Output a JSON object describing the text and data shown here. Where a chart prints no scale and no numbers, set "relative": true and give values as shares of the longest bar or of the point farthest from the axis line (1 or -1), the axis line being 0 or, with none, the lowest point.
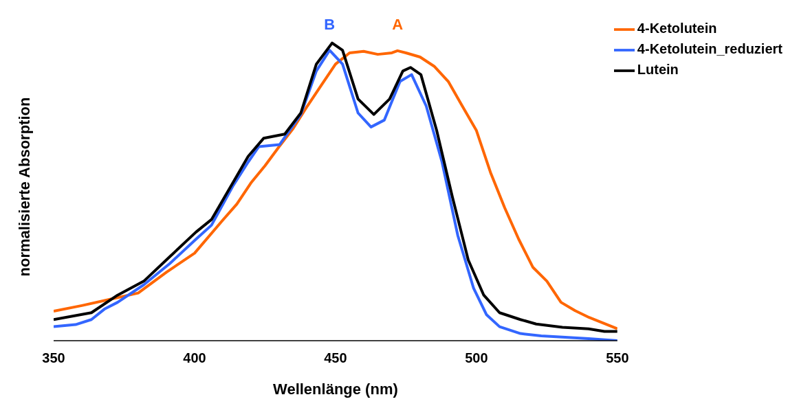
{
  "chart_data": {
    "type": "line",
    "xlabel": "Wellenlänge (nm)",
    "ylabel": "normalisierte Absorption",
    "relative": true,
    "xlim": [
      350,
      550
    ],
    "xticks": [
      350,
      400,
      450,
      500,
      550
    ],
    "grid": false,
    "legend": "top right",
    "marker": "none",
    "line_style": "solid",
    "series": [
      {
        "name": "4-Ketolutein",
        "color": "#ff6600",
        "x": [
          350,
          360,
          370,
          380,
          390,
          400,
          410,
          415,
          420,
          425,
          430,
          435,
          440,
          445,
          450,
          455,
          460,
          465,
          470,
          472,
          475,
          480,
          485,
          490,
          495,
          500,
          505,
          510,
          515,
          520,
          525,
          530,
          535,
          540,
          545,
          550
        ],
        "values": [
          0.099,
          0.118,
          0.139,
          0.16,
          0.23,
          0.294,
          0.405,
          0.459,
          0.53,
          0.588,
          0.652,
          0.713,
          0.788,
          0.859,
          0.929,
          0.967,
          0.972,
          0.962,
          0.967,
          0.974,
          0.967,
          0.953,
          0.922,
          0.871,
          0.788,
          0.706,
          0.565,
          0.447,
          0.341,
          0.247,
          0.2,
          0.129,
          0.101,
          0.078,
          0.059,
          0.04
        ]
      },
      {
        "name": "4-Ketolutein_reduziert",
        "color": "#3366ff",
        "x": [
          350,
          357.8,
          363.4,
          368,
          372.7,
          382,
          391.2,
          400.5,
          406,
          413.5,
          419,
          422.8,
          430.2,
          437.7,
          443.2,
          447.9,
          452.5,
          458,
          462.6,
          467.3,
          472.9,
          477,
          482.2,
          487.8,
          493.4,
          499,
          503.6,
          508.2,
          515.6,
          523,
          530.5,
          539.8,
          550
        ],
        "values": [
          0.047,
          0.054,
          0.071,
          0.106,
          0.129,
          0.188,
          0.259,
          0.341,
          0.388,
          0.518,
          0.6,
          0.652,
          0.659,
          0.76,
          0.906,
          0.976,
          0.929,
          0.765,
          0.718,
          0.741,
          0.871,
          0.894,
          0.788,
          0.6,
          0.353,
          0.176,
          0.087,
          0.047,
          0.024,
          0.016,
          0.012,
          0.007,
          0
        ]
      },
      {
        "name": "Lutein",
        "color": "#000000",
        "x": [
          350,
          363.4,
          372.7,
          382,
          391.2,
          400.5,
          406,
          413.5,
          419,
          424.5,
          432,
          437.7,
          443.2,
          448.8,
          452.5,
          458,
          463.6,
          469.2,
          473.9,
          476.6,
          480.3,
          485.9,
          491.5,
          497.1,
          502.6,
          508.2,
          515.6,
          521.2,
          530.5,
          539.8,
          545.4,
          550
        ],
        "values": [
          0.071,
          0.094,
          0.153,
          0.2,
          0.282,
          0.365,
          0.407,
          0.529,
          0.619,
          0.68,
          0.694,
          0.765,
          0.929,
          1,
          0.976,
          0.812,
          0.76,
          0.812,
          0.906,
          0.918,
          0.894,
          0.706,
          0.482,
          0.271,
          0.153,
          0.094,
          0.071,
          0.056,
          0.045,
          0.04,
          0.031,
          0.031
        ]
      }
    ],
    "annotations": [
      "B",
      "A"
    ]
  }
}
